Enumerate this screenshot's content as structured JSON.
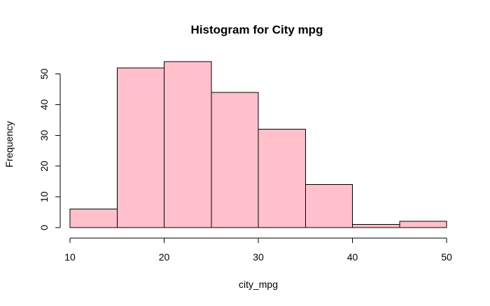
{
  "chart_data": {
    "type": "bar",
    "title": "Histogram for City mpg",
    "xlabel": "city_mpg",
    "ylabel": "Frequency",
    "bins": [
      {
        "start": 10,
        "end": 15,
        "count": 6
      },
      {
        "start": 15,
        "end": 20,
        "count": 52
      },
      {
        "start": 20,
        "end": 25,
        "count": 54
      },
      {
        "start": 25,
        "end": 30,
        "count": 44
      },
      {
        "start": 30,
        "end": 35,
        "count": 32
      },
      {
        "start": 35,
        "end": 40,
        "count": 14
      },
      {
        "start": 40,
        "end": 45,
        "count": 1
      },
      {
        "start": 45,
        "end": 50,
        "count": 2
      }
    ],
    "xticks": [
      10,
      20,
      30,
      40,
      50
    ],
    "yticks": [
      0,
      10,
      20,
      30,
      40,
      50
    ],
    "xlim": [
      10,
      50
    ],
    "ylim": [
      0,
      54
    ],
    "bar_color": "#ffc0cb",
    "grid": false,
    "legend": "none"
  }
}
